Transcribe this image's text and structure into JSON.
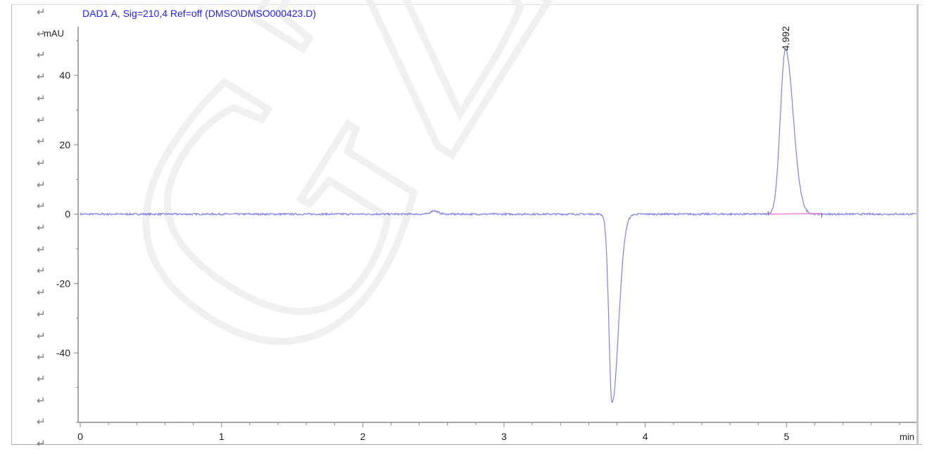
{
  "watermark": "GZHL",
  "colors": {
    "trace": "#8080e8",
    "baseline": "#ff66cc",
    "title": "#2020ff",
    "axis": "#555555"
  },
  "return_glyph": "↵",
  "chart_data": {
    "type": "line",
    "title": "DAD1 A, Sig=210,4 Ref=off (DMSO\\DMSO000423.D)",
    "xlabel": "min",
    "ylabel": "mAU",
    "xlim": [
      0,
      5.92
    ],
    "ylim": [
      -60,
      54
    ],
    "x_ticks": [
      0,
      1,
      2,
      3,
      4,
      5
    ],
    "x_tick_labels": [
      "0",
      "1",
      "2",
      "3",
      "4",
      "5"
    ],
    "x_minor_step": 0.2,
    "y_ticks": [
      -40,
      -20,
      0,
      20,
      40
    ],
    "y_tick_labels": [
      "-40",
      "-20",
      "0",
      "20",
      "40"
    ],
    "y_minor_step": 10,
    "grid": false,
    "peaks": [
      {
        "rt": 2.5,
        "height": 1.0,
        "sigma_left": 0.02,
        "sigma_right": 0.03
      },
      {
        "rt": 3.765,
        "height": -54.5,
        "sigma_left": 0.022,
        "sigma_right": 0.045
      },
      {
        "rt": 4.992,
        "height": 47.5,
        "sigma_left": 0.035,
        "sigma_right": 0.055
      }
    ],
    "annotations": [
      {
        "x": 4.992,
        "text": "4.992"
      }
    ],
    "integration_baseline": {
      "start": 4.87,
      "end": 5.25
    }
  }
}
